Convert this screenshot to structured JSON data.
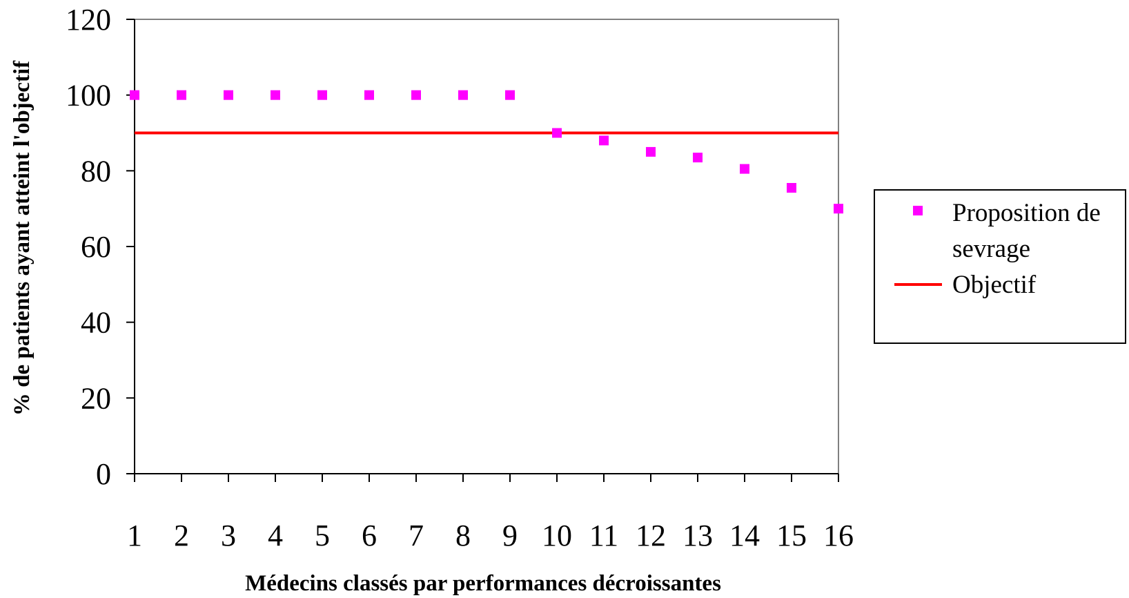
{
  "chart_data": {
    "type": "scatter",
    "title": "",
    "xlabel": "Médecins classés par performances décroissantes",
    "ylabel": "% de patients ayant atteint l'objectif",
    "x_ticks": [
      "1",
      "2",
      "3",
      "4",
      "5",
      "6",
      "7",
      "8",
      "9",
      "10",
      "11",
      "12",
      "13",
      "14",
      "15",
      "16"
    ],
    "y_ticks": [
      "0",
      "20",
      "40",
      "60",
      "80",
      "100",
      "120"
    ],
    "xlim": [
      1,
      16
    ],
    "ylim": [
      0,
      120
    ],
    "grid": false,
    "legend_position": "right",
    "series": [
      {
        "name": "Proposition de sevrage",
        "kind": "scatter",
        "marker": "square",
        "color": "#ff00ff",
        "x": [
          1,
          2,
          3,
          4,
          5,
          6,
          7,
          8,
          9,
          10,
          11,
          12,
          13,
          14,
          15,
          16
        ],
        "values": [
          100,
          100,
          100,
          100,
          100,
          100,
          100,
          100,
          100,
          90,
          88,
          85,
          83.5,
          80.5,
          75.5,
          70
        ]
      },
      {
        "name": "Objectif",
        "kind": "hline",
        "color": "#ff0000",
        "value": 90
      }
    ],
    "legend": {
      "entry1_line1": "Proposition de",
      "entry1_line2": "sevrage",
      "entry2": "Objectif"
    }
  }
}
